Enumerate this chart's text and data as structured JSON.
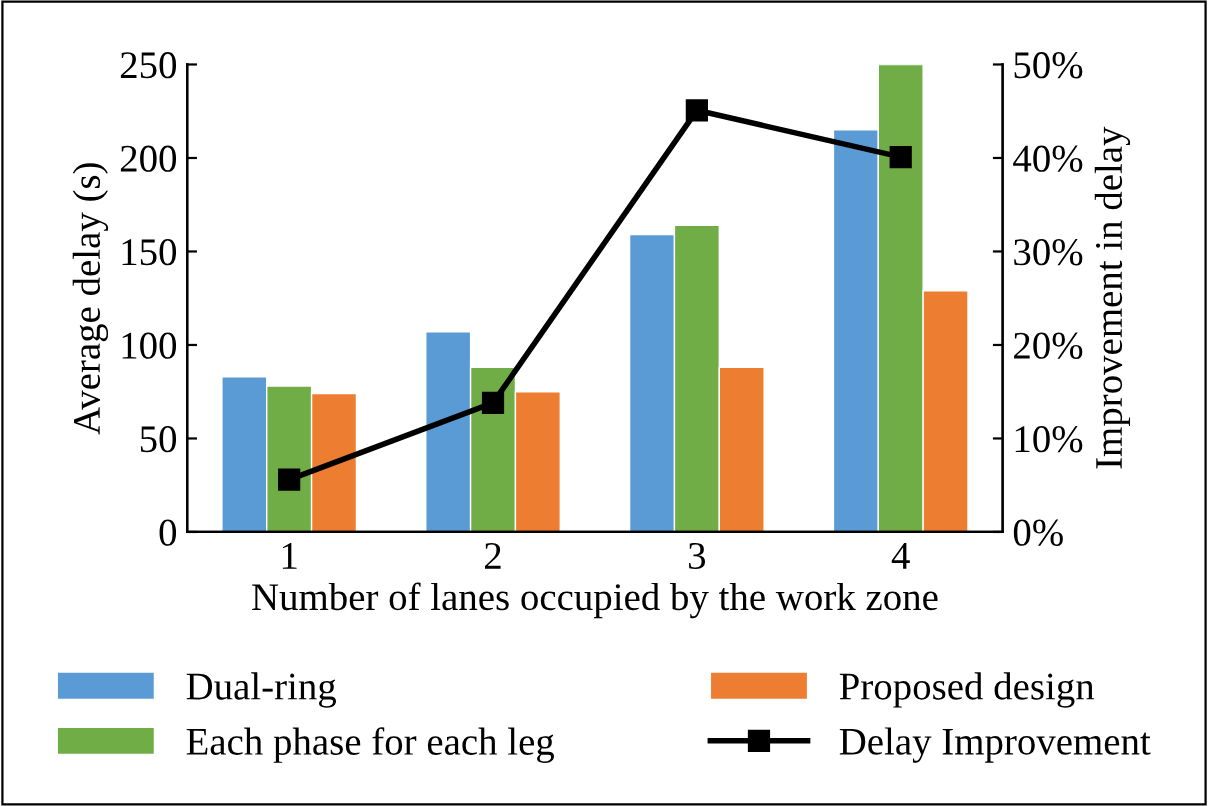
{
  "chart_data": {
    "type": "bar",
    "xlabel": "Number of lanes occupied by the work zone",
    "ylabel": "Average delay (s)",
    "y2label": "Improvement in delay",
    "categories": [
      "1",
      "2",
      "3",
      "4"
    ],
    "series": [
      {
        "name": "Dual-ring",
        "color": "#5b9bd5",
        "values": [
          83,
          107,
          159,
          215
        ]
      },
      {
        "name": "Each phase for each leg",
        "color": "#70ad47",
        "values": [
          78,
          88,
          164,
          250
        ]
      },
      {
        "name": "Proposed design",
        "color": "#ed7d31",
        "values": [
          74,
          75,
          88,
          129
        ]
      },
      {
        "name": "Delay Improvement",
        "type": "line",
        "axis": "y2",
        "color": "#000000",
        "marker": "square",
        "values": [
          5.6,
          13.8,
          45.1,
          40.1
        ]
      }
    ],
    "ylim": [
      0,
      250
    ],
    "yticks": [
      0,
      50,
      100,
      150,
      200,
      250
    ],
    "y2lim": [
      0,
      50
    ],
    "y2ticks": [
      {
        "value": 0,
        "label": "0%"
      },
      {
        "value": 10,
        "label": "10%"
      },
      {
        "value": 20,
        "label": "20%"
      },
      {
        "value": 30,
        "label": "30%"
      },
      {
        "value": 40,
        "label": "40%"
      },
      {
        "value": 50,
        "label": "50%"
      }
    ],
    "grid": false,
    "legend": "bottom"
  }
}
